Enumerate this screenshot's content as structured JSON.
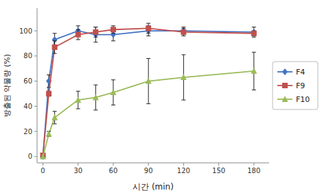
{
  "chart_data": {
    "type": "line",
    "xlabel": "시간 (min)",
    "ylabel": "방출된 약물량 (%)",
    "x": [
      0,
      5,
      10,
      30,
      45,
      60,
      90,
      120,
      180
    ],
    "xlim": [
      -5,
      193
    ],
    "ylim": [
      -5,
      118
    ],
    "xticks": [
      0,
      30,
      60,
      90,
      120,
      150,
      180
    ],
    "yticks": [
      0,
      20,
      40,
      60,
      80,
      100
    ],
    "grid": false,
    "legend": "right",
    "series": [
      {
        "name": "F4",
        "color": "#4472C4",
        "marker": "diamond",
        "values": [
          0,
          60,
          93,
          100,
          97,
          97,
          100,
          100,
          99
        ],
        "errors": [
          0,
          5,
          5,
          4,
          6,
          5,
          4,
          3,
          4
        ]
      },
      {
        "name": "F9",
        "color": "#C0504D",
        "marker": "square",
        "values": [
          1,
          50,
          87,
          97,
          99,
          101,
          102,
          99,
          98
        ],
        "errors": [
          1,
          2,
          5,
          4,
          4,
          3,
          4,
          3,
          2
        ]
      },
      {
        "name": "F10",
        "color": "#9BBB59",
        "marker": "triangle",
        "values": [
          0,
          18,
          31,
          45,
          47,
          51,
          60,
          63,
          68
        ],
        "errors": [
          0,
          2,
          5,
          7,
          10,
          10,
          18,
          18,
          15
        ]
      }
    ]
  }
}
